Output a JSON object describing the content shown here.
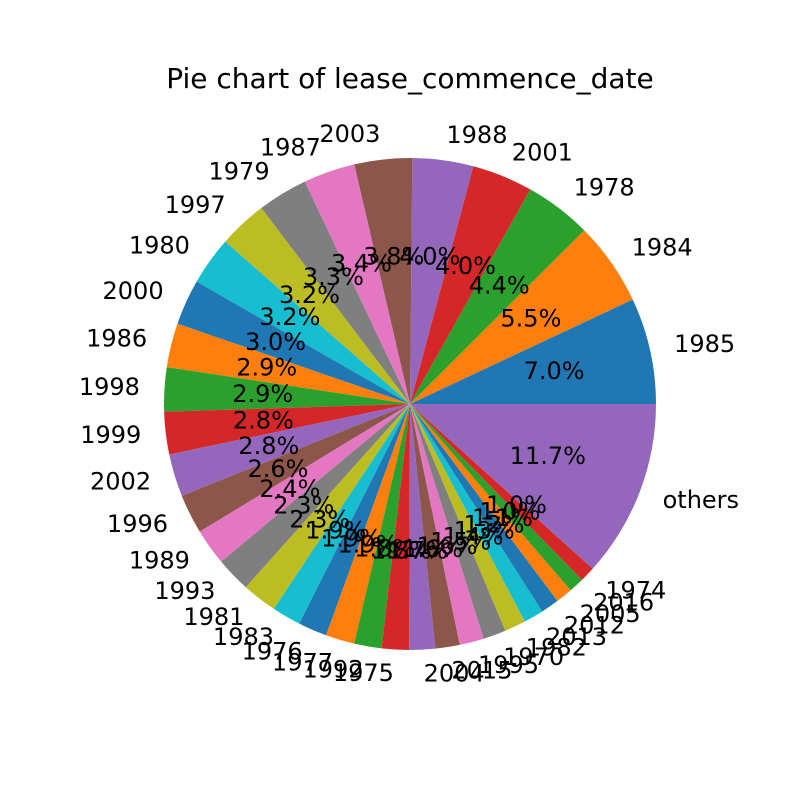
{
  "chart_data": {
    "type": "pie",
    "title": "Pie chart of lease_commence_date",
    "start_angle_deg": 0,
    "direction": "counterclockwise",
    "slices": [
      {
        "label": "1985",
        "value": 7.0,
        "pct": "7.0%",
        "color": "#1f77b4"
      },
      {
        "label": "1984",
        "value": 5.5,
        "pct": "5.5%",
        "color": "#ff7f0e"
      },
      {
        "label": "1978",
        "value": 4.4,
        "pct": "4.4%",
        "color": "#2ca02c"
      },
      {
        "label": "2001",
        "value": 4.0,
        "pct": "4.0%",
        "color": "#d62728"
      },
      {
        "label": "1988",
        "value": 4.0,
        "pct": "4.0%",
        "color": "#9467bd"
      },
      {
        "label": "2003",
        "value": 3.8,
        "pct": "3.8%",
        "color": "#8c564b"
      },
      {
        "label": "1987",
        "value": 3.4,
        "pct": "3.4%",
        "color": "#e377c2"
      },
      {
        "label": "1979",
        "value": 3.3,
        "pct": "3.3%",
        "color": "#7f7f7f"
      },
      {
        "label": "1997",
        "value": 3.2,
        "pct": "3.2%",
        "color": "#bcbd22"
      },
      {
        "label": "1980",
        "value": 3.2,
        "pct": "3.2%",
        "color": "#17becf"
      },
      {
        "label": "2000",
        "value": 3.0,
        "pct": "3.0%",
        "color": "#1f77b4"
      },
      {
        "label": "1986",
        "value": 2.9,
        "pct": "2.9%",
        "color": "#ff7f0e"
      },
      {
        "label": "1998",
        "value": 2.9,
        "pct": "2.9%",
        "color": "#2ca02c"
      },
      {
        "label": "1999",
        "value": 2.8,
        "pct": "2.8%",
        "color": "#d62728"
      },
      {
        "label": "2002",
        "value": 2.8,
        "pct": "2.8%",
        "color": "#9467bd"
      },
      {
        "label": "1996",
        "value": 2.6,
        "pct": "2.6%",
        "color": "#8c564b"
      },
      {
        "label": "1989",
        "value": 2.4,
        "pct": "2.4%",
        "color": "#e377c2"
      },
      {
        "label": "1993",
        "value": 2.3,
        "pct": "2.3%",
        "color": "#7f7f7f"
      },
      {
        "label": "1981",
        "value": 2.3,
        "pct": "2.3%",
        "color": "#bcbd22"
      },
      {
        "label": "1983",
        "value": 1.9,
        "pct": "1.9%",
        "color": "#17becf"
      },
      {
        "label": "1976",
        "value": 1.9,
        "pct": "1.9%",
        "color": "#1f77b4"
      },
      {
        "label": "1977",
        "value": 1.9,
        "pct": "1.9%",
        "color": "#ff7f0e"
      },
      {
        "label": "1992",
        "value": 1.8,
        "pct": "1.8%",
        "color": "#2ca02c"
      },
      {
        "label": "1975",
        "value": 1.8,
        "pct": "1.8%",
        "color": "#d62728"
      },
      {
        "label": "2004",
        "value": 1.7,
        "pct": "1.7%",
        "color": "#9467bd"
      },
      {
        "label": "2015",
        "value": 1.6,
        "pct": "1.6%",
        "color": "#8c564b"
      },
      {
        "label": "1995",
        "value": 1.6,
        "pct": "1.6%",
        "color": "#e377c2"
      },
      {
        "label": "1970",
        "value": 1.5,
        "pct": "1.5%",
        "color": "#7f7f7f"
      },
      {
        "label": "1982",
        "value": 1.4,
        "pct": "1.4%",
        "color": "#bcbd22"
      },
      {
        "label": "2013",
        "value": 1.3,
        "pct": "1.3%",
        "color": "#17becf"
      },
      {
        "label": "2012",
        "value": 1.2,
        "pct": "1.2%",
        "color": "#1f77b4"
      },
      {
        "label": "2005",
        "value": 1.1,
        "pct": "1.1%",
        "color": "#ff7f0e"
      },
      {
        "label": "2016",
        "value": 1.0,
        "pct": "1.0%",
        "color": "#2ca02c"
      },
      {
        "label": "1974",
        "value": 1.0,
        "pct": "1.0%",
        "color": "#d62728"
      },
      {
        "label": "others",
        "value": 11.7,
        "pct": "11.7%",
        "color": "#9467bd"
      }
    ]
  }
}
